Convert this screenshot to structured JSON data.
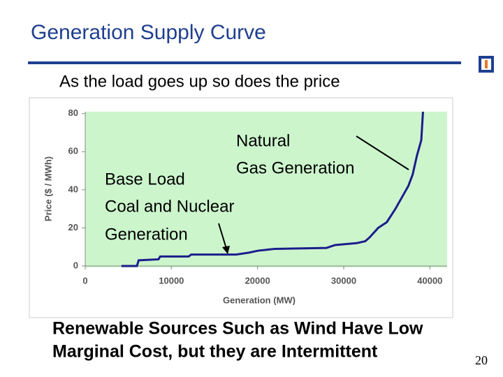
{
  "title": "Generation Supply Curve",
  "subtitle": "As the load goes up so does the price",
  "footer_lines": [
    "Renewable Sources Such as Wind Have Low",
    "Marginal Cost, but they are Intermittent"
  ],
  "page_number": "20",
  "chart_data": {
    "type": "line",
    "x_label": "Generation (MW)",
    "y_label": "Price ($ / MWh)",
    "annotations": [
      "Natural",
      "Gas Generation",
      "Base Load",
      "Coal and Nuclear",
      "Generation"
    ],
    "x": [
      4200,
      6000,
      6200,
      8500,
      8700,
      12000,
      12300,
      17500,
      19000,
      20000,
      22000,
      28000,
      29000,
      31500,
      32500,
      33000,
      34000,
      35000,
      36000,
      37000,
      37500,
      38000,
      38500,
      39000,
      39200
    ],
    "values": [
      0,
      0,
      3,
      3.5,
      5,
      5,
      6,
      6,
      7,
      8,
      9,
      9.5,
      11,
      12,
      13,
      15,
      20,
      23,
      30,
      38,
      42,
      48,
      58,
      66,
      81
    ],
    "color": "#1c1c8c",
    "xlim": [
      0,
      42000
    ],
    "ylim": [
      0,
      81
    ],
    "xticks": [
      0,
      10000,
      20000,
      30000,
      40000
    ],
    "yticks": [
      0,
      20,
      40,
      60,
      80
    ],
    "plot_background": "#ccf5cc"
  }
}
